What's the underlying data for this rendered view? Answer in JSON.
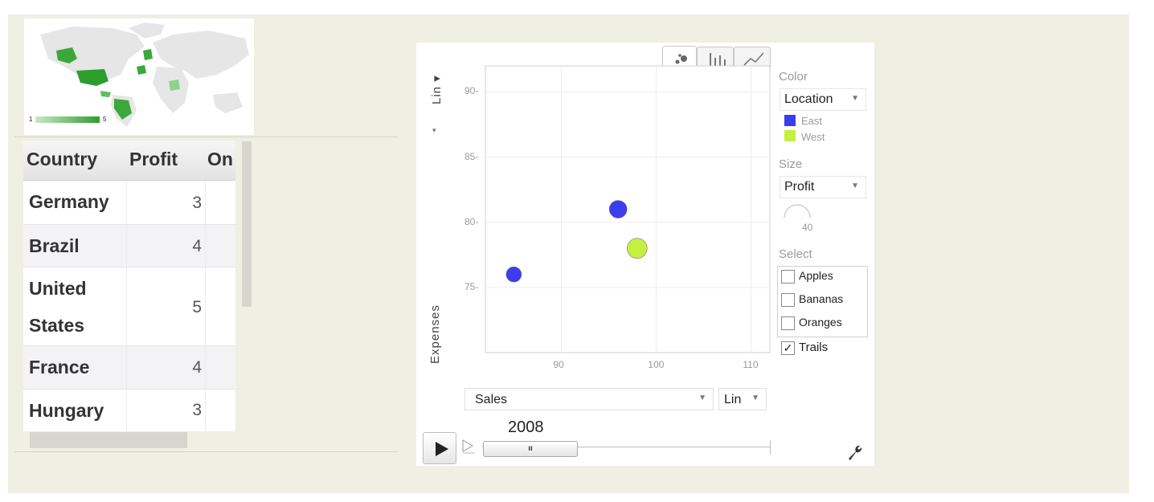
{
  "map": {
    "legend_min": "1",
    "legend_max": "5",
    "colors": {
      "low": "#b9e3b4",
      "high": "#2d9e2d",
      "base": "#e8e8e8"
    }
  },
  "table": {
    "headers": [
      "Country",
      "Profit",
      "On"
    ],
    "rows": [
      {
        "country": "Germany",
        "profit": "3"
      },
      {
        "country": "Brazil",
        "profit": "4"
      },
      {
        "country": "United States",
        "line1": "United",
        "line2": "States",
        "profit": "5"
      },
      {
        "country": "France",
        "profit": "4"
      },
      {
        "country": "Hungary",
        "profit": "3"
      }
    ]
  },
  "motion_chart": {
    "tabs": [
      "bubble-chart-icon",
      "bar-chart-icon",
      "line-chart-icon"
    ],
    "y_scale": "Lin",
    "y_label": "Expenses",
    "x_label": "Sales",
    "x_scale": "Lin",
    "year": "2008",
    "controls": {
      "color_label": "Color",
      "color_value": "Location",
      "legend": [
        {
          "name": "East",
          "color": "#3c3cf0"
        },
        {
          "name": "West",
          "color": "#c4f040"
        }
      ],
      "size_label": "Size",
      "size_value": "Profit",
      "size_ref": "40",
      "select_label": "Select",
      "select_items": [
        "Apples",
        "Bananas",
        "Oranges"
      ],
      "trails_label": "Trails",
      "trails_checked": true
    }
  },
  "chart_data": {
    "type": "scatter",
    "xlabel": "Sales",
    "ylabel": "Expenses",
    "x_ticks": [
      90,
      100,
      110
    ],
    "y_ticks": [
      75,
      80,
      85,
      90
    ],
    "xlim": [
      82,
      112
    ],
    "ylim": [
      70,
      92
    ],
    "series": [
      {
        "name": "East",
        "color": "#3c3cf0",
        "points": [
          {
            "x": 85,
            "y": 76,
            "size": 3
          },
          {
            "x": 96,
            "y": 81,
            "size": 4
          }
        ]
      },
      {
        "name": "West",
        "color": "#c4f040",
        "points": [
          {
            "x": 98,
            "y": 78,
            "size": 5
          }
        ]
      }
    ]
  }
}
